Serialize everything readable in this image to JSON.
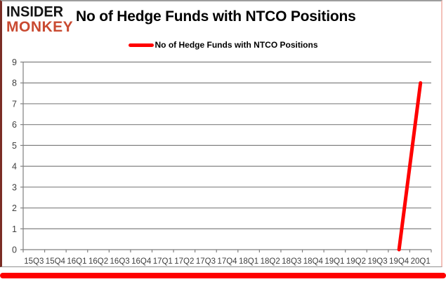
{
  "header": {
    "logo_line1": "INSIDER",
    "logo_line2": "MONKEY",
    "title": "No of Hedge Funds with NTCO Positions"
  },
  "legend": {
    "label": "No of Hedge Funds with NTCO Positions"
  },
  "colors": {
    "line": "#ff0000",
    "grid": "#808080",
    "axis": "#808080",
    "tick_text": "#404040",
    "logo_red": "#c94a31",
    "logo_black": "#141414",
    "bottom_bar": "#fe0000"
  },
  "chart_data": {
    "type": "line",
    "title": "No of Hedge Funds with NTCO Positions",
    "categories": [
      "15Q3",
      "15Q4",
      "16Q1",
      "16Q2",
      "16Q3",
      "16Q4",
      "17Q1",
      "17Q2",
      "17Q3",
      "17Q4",
      "18Q1",
      "18Q2",
      "18Q3",
      "18Q4",
      "19Q1",
      "19Q2",
      "19Q3",
      "19Q4",
      "20Q1"
    ],
    "series": [
      {
        "name": "No of Hedge Funds with NTCO Positions",
        "values": [
          null,
          null,
          null,
          null,
          null,
          null,
          null,
          null,
          null,
          null,
          null,
          null,
          null,
          null,
          null,
          null,
          null,
          0,
          8
        ]
      }
    ],
    "xlabel": "",
    "ylabel": "",
    "ylim": [
      0,
      9
    ],
    "y_ticks": [
      0,
      1,
      2,
      3,
      4,
      5,
      6,
      7,
      8,
      9
    ],
    "grid": "horizontal",
    "legend_position": "top-center"
  }
}
